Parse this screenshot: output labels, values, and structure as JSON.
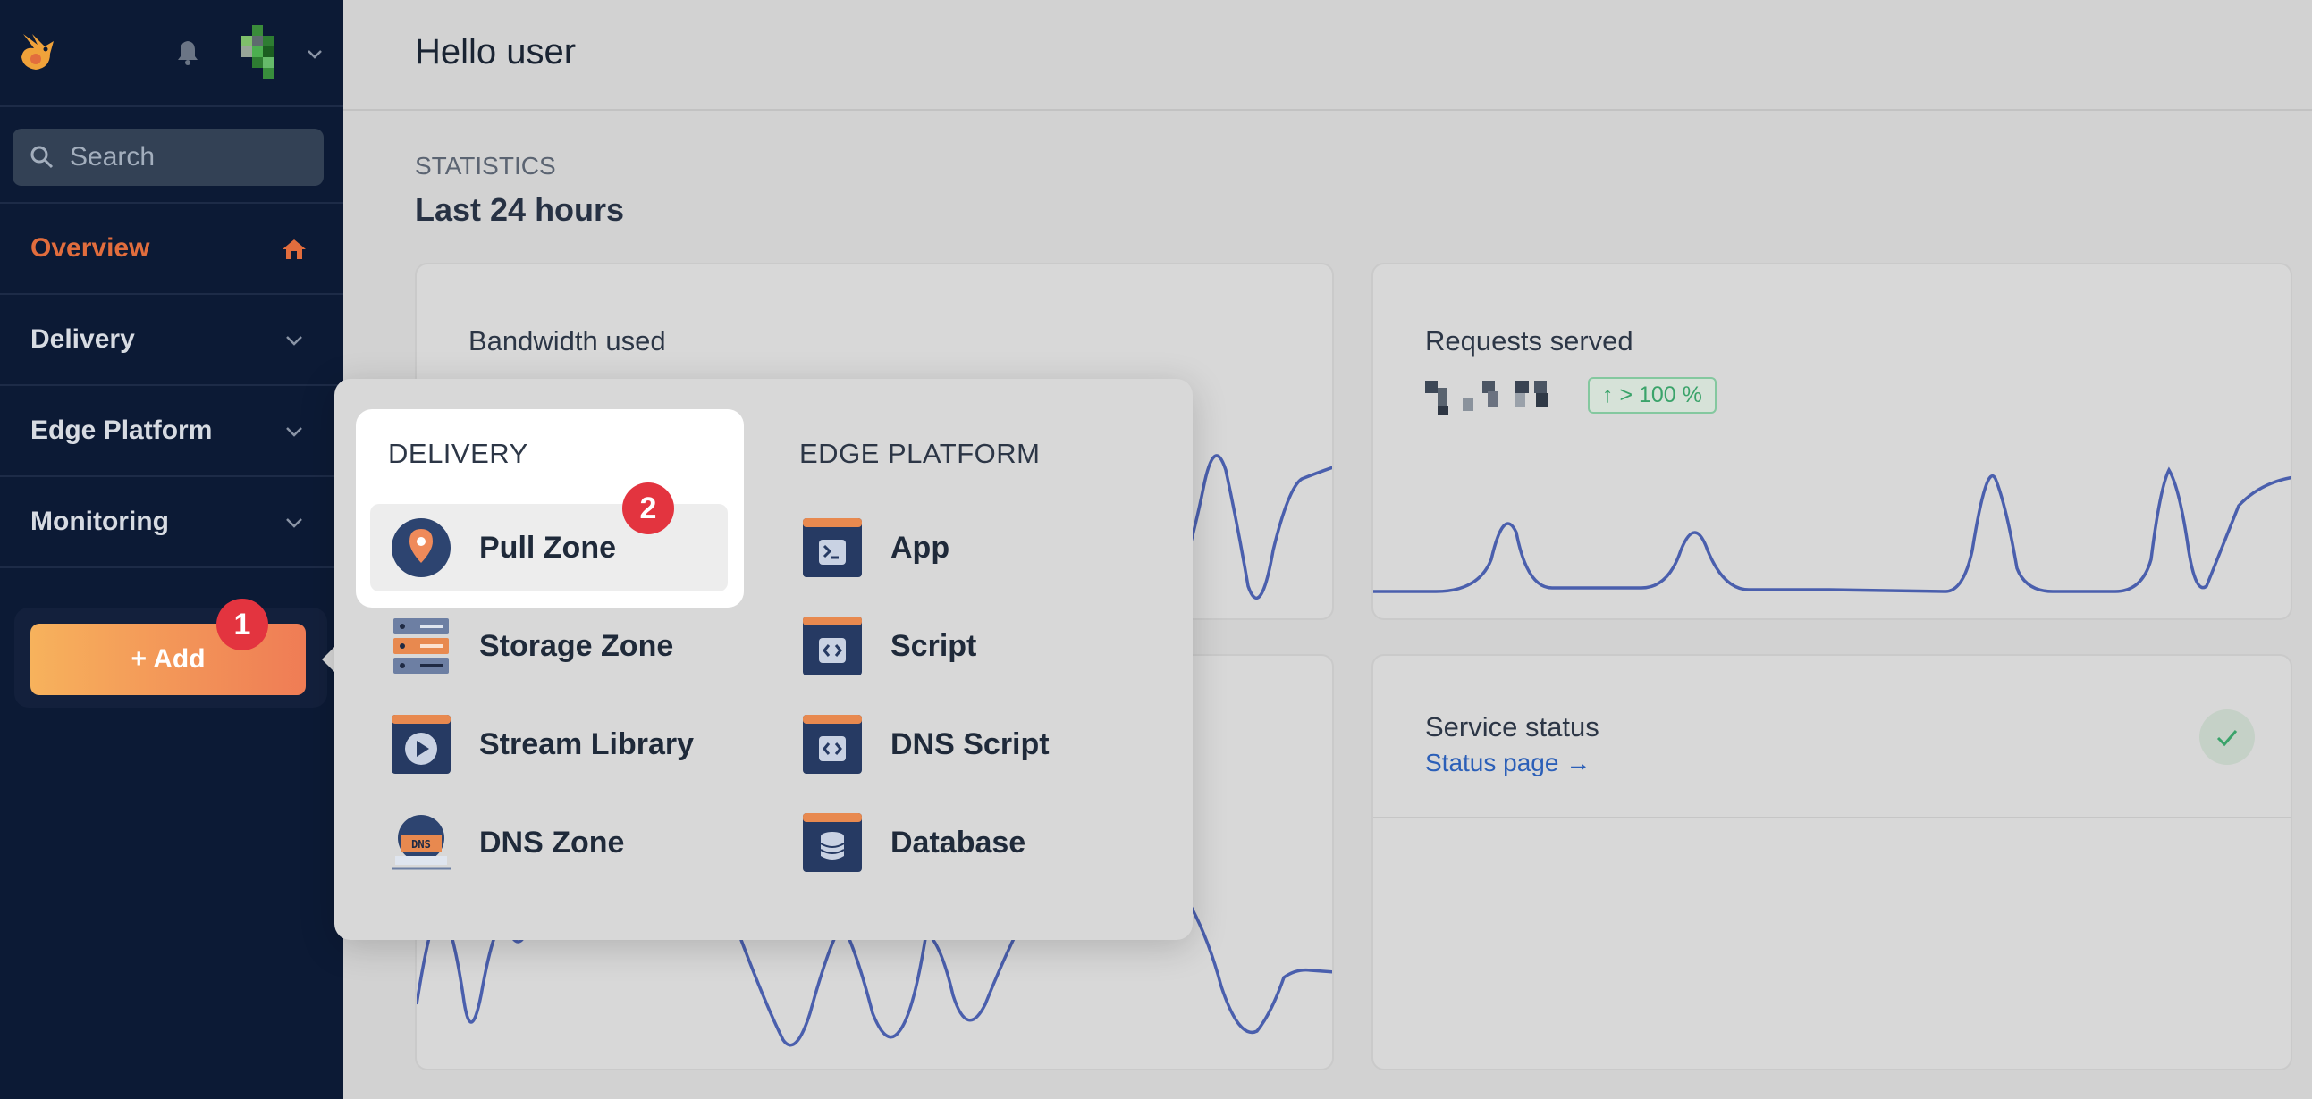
{
  "sidebar": {
    "search_placeholder": "Search",
    "nav": [
      {
        "label": "Overview",
        "icon": "home-icon"
      },
      {
        "label": "Delivery",
        "icon": "chevron-down-icon"
      },
      {
        "label": "Edge Platform",
        "icon": "chevron-down-icon"
      },
      {
        "label": "Monitoring",
        "icon": "chevron-down-icon"
      }
    ],
    "add_label": "+ Add",
    "add_badge": "1"
  },
  "header": {
    "greeting": "Hello user"
  },
  "stats": {
    "section_label": "STATISTICS",
    "period": "Last 24 hours",
    "bandwidth": {
      "label": "Bandwidth used"
    },
    "requests": {
      "label": "Requests served",
      "trend": "↑ > 100 %"
    },
    "service": {
      "label": "Service status",
      "link": "Status page →"
    }
  },
  "add_menu": {
    "badge": "2",
    "delivery": {
      "title": "DELIVERY",
      "items": [
        {
          "label": "Pull Zone",
          "icon": "map-pin-icon"
        },
        {
          "label": "Storage Zone",
          "icon": "server-stack-icon"
        },
        {
          "label": "Stream Library",
          "icon": "video-window-icon"
        },
        {
          "label": "DNS Zone",
          "icon": "dns-icon"
        }
      ]
    },
    "edge": {
      "title": "EDGE PLATFORM",
      "items": [
        {
          "label": "App",
          "icon": "terminal-window-icon"
        },
        {
          "label": "Script",
          "icon": "code-window-icon"
        },
        {
          "label": "DNS Script",
          "icon": "code-window-icon"
        },
        {
          "label": "Database",
          "icon": "database-window-icon"
        }
      ]
    }
  },
  "colors": {
    "sidebar_bg": "#0c1a35",
    "accent": "#e26d3d",
    "chart_line": "#4a5fad",
    "badge": "#e3343f"
  }
}
